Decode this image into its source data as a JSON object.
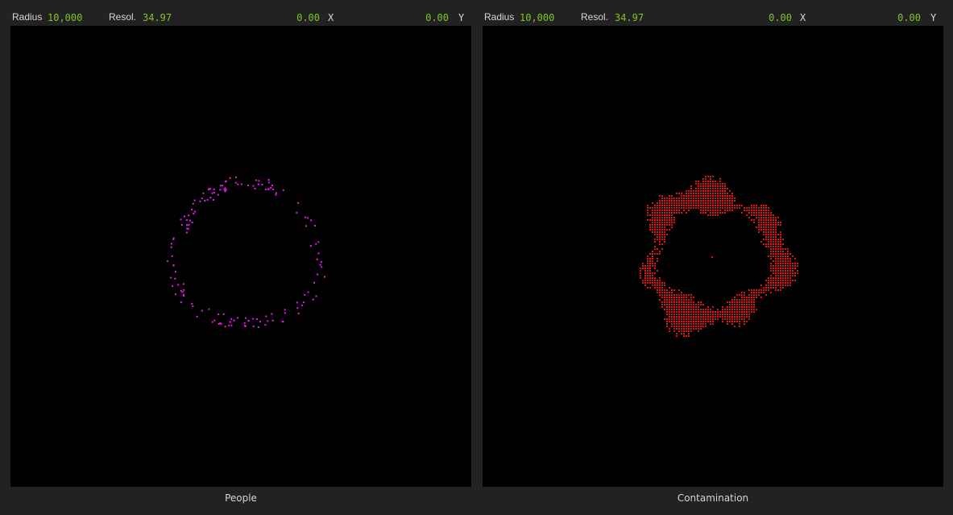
{
  "colors": {
    "background": "#222222",
    "canvas": "#000000",
    "label": "#d6d6d6",
    "value": "#7ec622",
    "people_dot": "#e81cf0",
    "contamination_cell": "#d81414"
  },
  "panels": [
    {
      "radius_label": "Radius",
      "radius_value": "10,000",
      "resol_label": "Resol.",
      "resol_value": "34.97",
      "x_value": "0.00",
      "x_label": "X",
      "y_value": "0.00",
      "y_label": "Y",
      "caption": "People"
    },
    {
      "radius_label": "Radius",
      "radius_value": "10,000",
      "resol_label": "Resol.",
      "resol_value": "34.97",
      "x_value": "0.00",
      "x_label": "X",
      "y_value": "0.00",
      "y_label": "Y",
      "caption": "Contamination"
    }
  ]
}
